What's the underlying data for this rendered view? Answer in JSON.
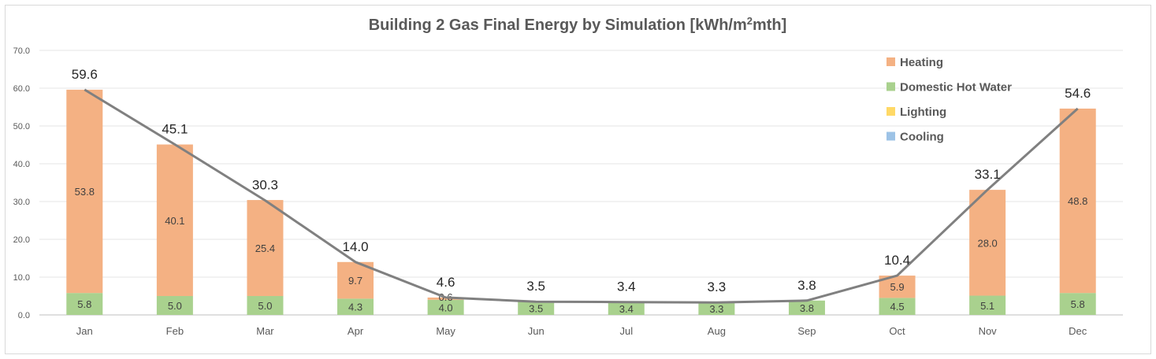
{
  "chart_data": {
    "type": "bar",
    "stacked": true,
    "title_main": "Building 2 Gas Final Energy by Simulation [kWh/m",
    "title_sup": "2",
    "title_tail": "mth]",
    "categories": [
      "Jan",
      "Feb",
      "Mar",
      "Apr",
      "May",
      "Jun",
      "Jul",
      "Aug",
      "Sep",
      "Oct",
      "Nov",
      "Dec"
    ],
    "ylim": [
      0,
      70
    ],
    "yticks": [
      "0.0",
      "10.0",
      "20.0",
      "30.0",
      "40.0",
      "50.0",
      "60.0",
      "70.0"
    ],
    "grid": true,
    "legend_position": "top-right",
    "series": [
      {
        "name": "Domestic Hot Water",
        "color": "#a9d18e",
        "values": [
          5.8,
          5.0,
          5.0,
          4.3,
          4.0,
          3.5,
          3.4,
          3.3,
          3.8,
          4.5,
          5.1,
          5.8
        ],
        "labels": [
          "5.8",
          "5.0",
          "5.0",
          "4.3",
          "4.0",
          "3.5",
          "3.4",
          "3.3",
          "3.8",
          "4.5",
          "5.1",
          "5.8"
        ]
      },
      {
        "name": "Heating",
        "color": "#f4b183",
        "values": [
          53.8,
          40.1,
          25.4,
          9.7,
          0.6,
          0,
          0,
          0,
          0,
          5.9,
          28.0,
          48.8
        ],
        "labels": [
          "53.8",
          "40.1",
          "25.4",
          "9.7",
          "0.6",
          "",
          "",
          "",
          "",
          "5.9",
          "28.0",
          "48.8"
        ]
      },
      {
        "name": "Lighting",
        "color": "#ffd966",
        "values": [
          0,
          0,
          0,
          0,
          0,
          0,
          0,
          0,
          0,
          0,
          0,
          0
        ]
      },
      {
        "name": "Cooling",
        "color": "#9dc3e6",
        "values": [
          0,
          0,
          0,
          0,
          0,
          0,
          0,
          0,
          0,
          0,
          0,
          0
        ]
      }
    ],
    "legend_order": [
      "Heating",
      "Domestic Hot Water",
      "Lighting",
      "Cooling"
    ],
    "totals": {
      "color": "#808080",
      "values": [
        59.6,
        45.1,
        30.3,
        14.0,
        4.6,
        3.5,
        3.4,
        3.3,
        3.8,
        10.4,
        33.1,
        54.6
      ],
      "labels": [
        "59.6",
        "45.1",
        "30.3",
        "14.0",
        "4.6",
        "3.5",
        "3.4",
        "3.3",
        "3.8",
        "10.4",
        "33.1",
        "54.6"
      ]
    }
  }
}
